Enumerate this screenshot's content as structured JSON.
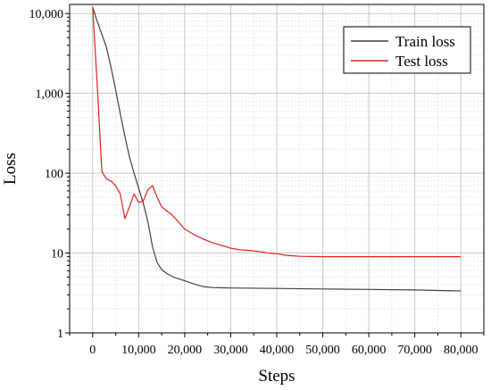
{
  "chart_data": {
    "type": "line",
    "title": "",
    "xlabel": "Steps",
    "ylabel": "Loss",
    "xlim": [
      -5000,
      85000
    ],
    "ylim": [
      1,
      13000
    ],
    "y_scale": "log",
    "grid": true,
    "legend_position": "top-right",
    "x_ticks": [
      0,
      10000,
      20000,
      30000,
      40000,
      50000,
      60000,
      70000,
      80000
    ],
    "x_tick_labels": [
      "0",
      "10,000",
      "20,000",
      "30,000",
      "40,000",
      "50,000",
      "60,000",
      "70,000",
      "80,000"
    ],
    "y_ticks": [
      1,
      10,
      100,
      1000,
      10000
    ],
    "y_tick_labels": [
      "1",
      "10",
      "100",
      "1,000",
      "10,000"
    ],
    "series": [
      {
        "name": "Train loss",
        "color": "#404040",
        "x": [
          0,
          1000,
          2000,
          3000,
          4000,
          5000,
          6000,
          7000,
          8000,
          9000,
          10000,
          11000,
          12000,
          13000,
          14000,
          15000,
          16000,
          17000,
          18000,
          20000,
          22000,
          24000,
          26000,
          30000,
          40000,
          50000,
          60000,
          70000,
          80000
        ],
        "y": [
          12000,
          8000,
          5500,
          3800,
          2100,
          1100,
          560,
          290,
          160,
          100,
          65,
          42,
          25,
          12,
          7.6,
          6.2,
          5.6,
          5.2,
          4.9,
          4.5,
          4.1,
          3.8,
          3.7,
          3.65,
          3.6,
          3.55,
          3.5,
          3.45,
          3.35
        ]
      },
      {
        "name": "Test loss",
        "color": "#e02020",
        "x": [
          0,
          1000,
          2000,
          3000,
          4000,
          5000,
          6000,
          7000,
          8000,
          9000,
          10000,
          11000,
          12000,
          13000,
          14000,
          15000,
          16000,
          17000,
          18000,
          20000,
          22000,
          24000,
          26000,
          28000,
          30000,
          32000,
          34000,
          36000,
          38000,
          40000,
          42000,
          45000,
          50000,
          60000,
          70000,
          80000
        ],
        "y": [
          12000,
          1300,
          105,
          85,
          80,
          70,
          55,
          27,
          38,
          55,
          43,
          45,
          62,
          70,
          50,
          38,
          34,
          31,
          27,
          20,
          17,
          15,
          13.5,
          12.5,
          11.5,
          11,
          10.8,
          10.5,
          10,
          9.8,
          9.4,
          9.1,
          9,
          9,
          9,
          9
        ]
      }
    ]
  }
}
